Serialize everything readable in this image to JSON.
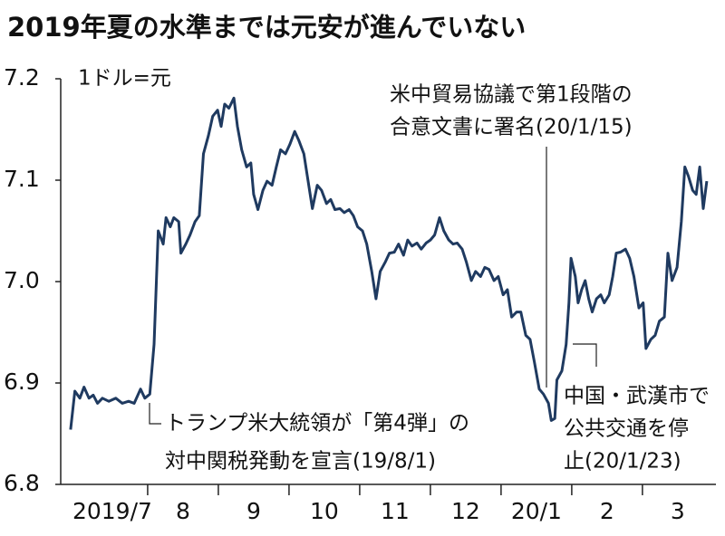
{
  "chart_data": {
    "type": "line",
    "title": "2019年夏の水準までは元安が進んでいない",
    "y_label": "1ドル=元",
    "annotations": [
      [
        "トランプ米大統領が「第4弾」の",
        "対中関税発動を宣言(19/8/1)"
      ],
      [
        "米中貿易協議で第1段階の",
        "合意文書に署名(20/1/15)"
      ],
      [
        "中国・武漢市で",
        "公共交通を停",
        "止(20/1/23)"
      ]
    ],
    "xlim": [
      -0.23,
      9.04
    ],
    "xticks": [
      {
        "value": 0.5,
        "label": "2019/7"
      },
      {
        "value": 1.5,
        "label": "8"
      },
      {
        "value": 2.5,
        "label": "9"
      },
      {
        "value": 3.5,
        "label": "10"
      },
      {
        "value": 4.5,
        "label": "11"
      },
      {
        "value": 5.5,
        "label": "12"
      },
      {
        "value": 6.5,
        "label": "20/1"
      },
      {
        "value": 7.5,
        "label": "2"
      },
      {
        "value": 8.5,
        "label": "3"
      }
    ],
    "ylim": [
      6.8,
      7.2
    ],
    "yticks": [
      6.8,
      6.9,
      {
        "value": 7,
        "label": "7.0"
      },
      7.1,
      7.2
    ],
    "x": [
      -0.09,
      -0.03,
      0.04,
      0.1,
      0.17,
      0.23,
      0.29,
      0.36,
      0.45,
      0.55,
      0.64,
      0.73,
      0.81,
      0.9,
      0.96,
      1.03,
      1.09,
      1.15,
      1.22,
      1.26,
      1.32,
      1.37,
      1.44,
      1.47,
      1.54,
      1.6,
      1.67,
      1.73,
      1.79,
      1.86,
      1.92,
      1.99,
      2.04,
      2.09,
      2.15,
      2.22,
      2.27,
      2.33,
      2.4,
      2.46,
      2.5,
      2.56,
      2.63,
      2.69,
      2.76,
      2.82,
      2.88,
      2.95,
      3.01,
      3.08,
      3.14,
      3.21,
      3.27,
      3.33,
      3.4,
      3.46,
      3.53,
      3.59,
      3.65,
      3.72,
      3.78,
      3.85,
      3.91,
      3.97,
      4.04,
      4.1,
      4.17,
      4.23,
      4.29,
      4.36,
      4.42,
      4.49,
      4.55,
      4.62,
      4.68,
      4.74,
      4.81,
      4.87,
      4.94,
      5.0,
      5.06,
      5.13,
      5.19,
      5.26,
      5.32,
      5.38,
      5.45,
      5.51,
      5.58,
      5.64,
      5.71,
      5.77,
      5.83,
      5.9,
      5.96,
      6.03,
      6.09,
      6.15,
      6.22,
      6.28,
      6.35,
      6.41,
      6.47,
      6.54,
      6.6,
      6.67,
      6.71,
      6.76,
      6.79,
      6.86,
      6.92,
      6.96,
      6.99,
      7.05,
      7.09,
      7.14,
      7.19,
      7.24,
      7.29,
      7.35,
      7.41,
      7.46,
      7.53,
      7.58,
      7.63,
      7.69,
      7.76,
      7.82,
      7.88,
      7.95,
      8.01,
      8.05,
      8.12,
      8.18,
      8.24,
      8.31,
      8.36,
      8.42,
      8.49,
      8.55,
      8.6,
      8.65,
      8.71,
      8.76,
      8.81,
      8.86,
      8.91
    ],
    "series": [
      {
        "color": "#1f3a60",
        "values": [
          6.854,
          6.892,
          6.885,
          6.896,
          6.885,
          6.888,
          6.88,
          6.885,
          6.882,
          6.885,
          6.88,
          6.882,
          6.88,
          6.894,
          6.885,
          6.889,
          6.938,
          7.05,
          7.037,
          7.063,
          7.054,
          7.063,
          7.059,
          7.028,
          7.037,
          7.046,
          7.059,
          7.065,
          7.126,
          7.144,
          7.163,
          7.169,
          7.153,
          7.175,
          7.171,
          7.181,
          7.153,
          7.13,
          7.113,
          7.117,
          7.086,
          7.071,
          7.09,
          7.099,
          7.095,
          7.113,
          7.13,
          7.126,
          7.135,
          7.148,
          7.139,
          7.126,
          7.099,
          7.072,
          7.095,
          7.09,
          7.077,
          7.081,
          7.071,
          7.072,
          7.068,
          7.071,
          7.065,
          7.054,
          7.05,
          7.037,
          7.01,
          6.983,
          7.01,
          7.019,
          7.028,
          7.029,
          7.037,
          7.026,
          7.041,
          7.035,
          7.038,
          7.032,
          7.038,
          7.041,
          7.046,
          7.063,
          7.05,
          7.041,
          7.037,
          7.038,
          7.032,
          7.019,
          7.001,
          7.01,
          7.005,
          7.014,
          7.012,
          7.001,
          7.005,
          6.987,
          6.992,
          6.965,
          6.97,
          6.97,
          6.947,
          6.943,
          6.921,
          6.894,
          6.889,
          6.88,
          6.863,
          6.865,
          6.903,
          6.912,
          6.938,
          6.979,
          7.023,
          7.005,
          6.979,
          6.992,
          7.001,
          6.983,
          6.97,
          6.983,
          6.987,
          6.979,
          6.987,
          7.005,
          7.028,
          7.029,
          7.032,
          7.023,
          7.005,
          6.974,
          6.979,
          6.934,
          6.943,
          6.947,
          6.961,
          6.965,
          7.028,
          7.001,
          7.014,
          7.059,
          7.113,
          7.104,
          7.09,
          7.086,
          7.113,
          7.072,
          7.099
        ]
      }
    ]
  }
}
